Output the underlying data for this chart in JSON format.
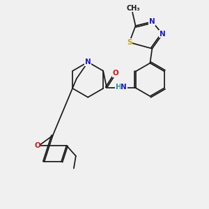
{
  "background_color": "#f0f0f0",
  "bond_color": "#1a1a1a",
  "atom_colors": {
    "N": "#1a1acc",
    "O": "#cc1a1a",
    "S": "#c8a800",
    "H": "#2a9090"
  },
  "font_size": 7.5,
  "font_size_small": 6.5,
  "figsize": [
    3.0,
    3.0
  ],
  "dpi": 100,
  "lw": 1.25,
  "dbg": 0.7
}
